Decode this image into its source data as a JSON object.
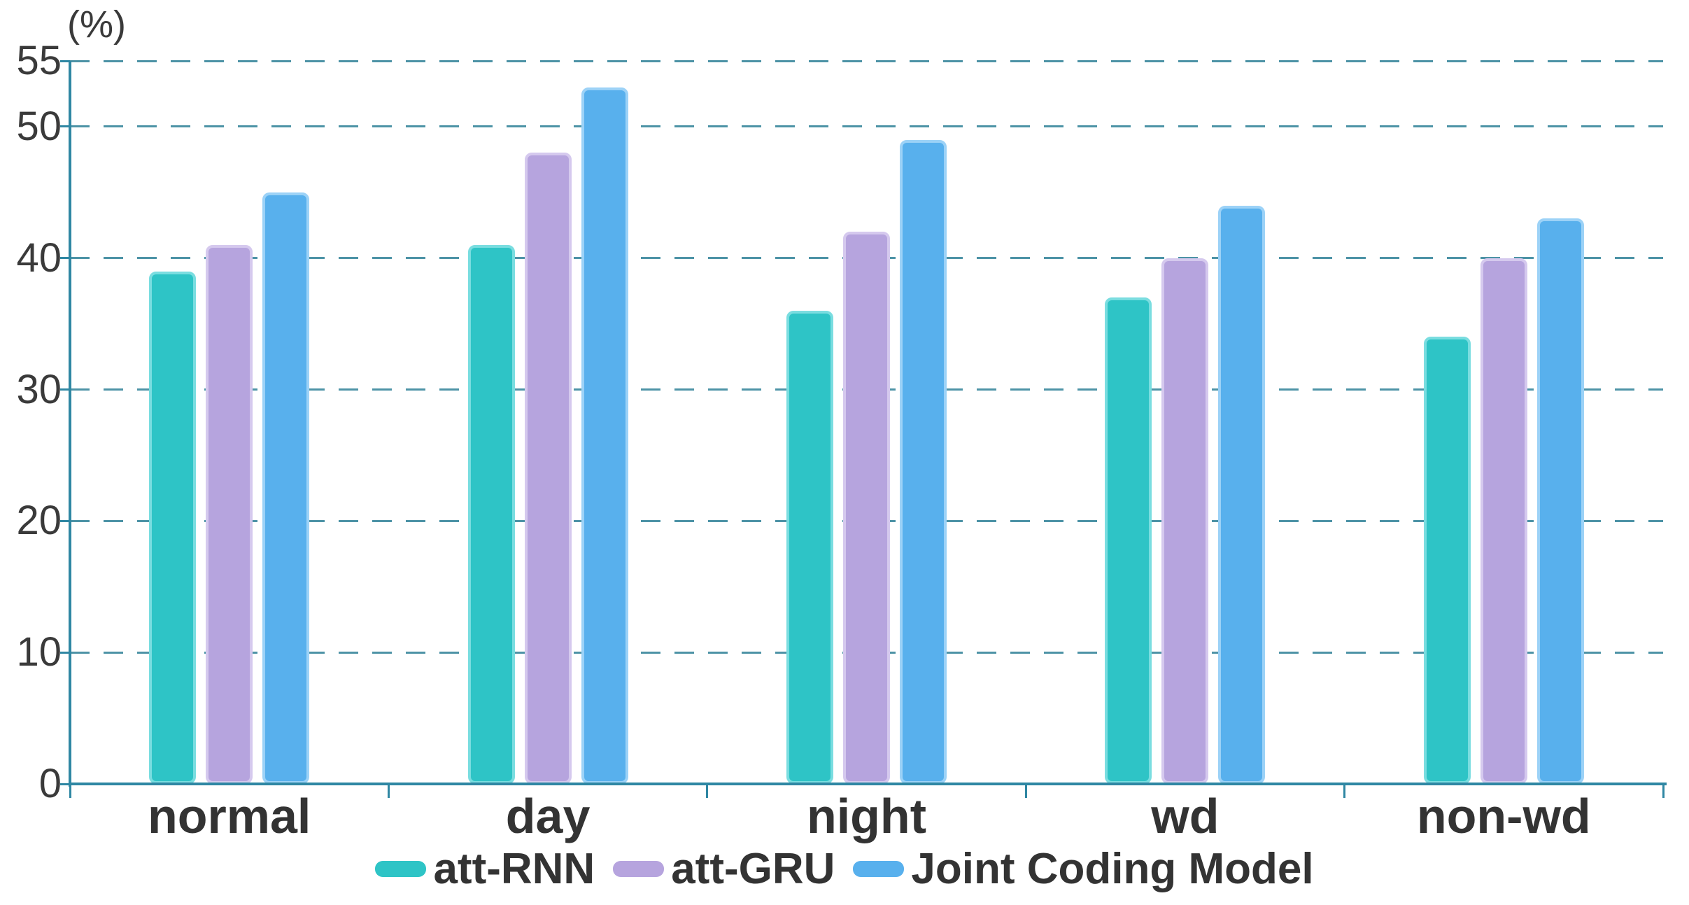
{
  "chart_data": {
    "type": "bar",
    "title": "",
    "unit_label": "(%)",
    "categories": [
      "normal",
      "day",
      "night",
      "wd",
      "non-wd"
    ],
    "series": [
      {
        "name": "att-RNN",
        "color": "#2EC4C6",
        "stroke": "#7ADDE0",
        "values": [
          39,
          41,
          36,
          37,
          34
        ]
      },
      {
        "name": "att-GRU",
        "color": "#B6A4DE",
        "stroke": "#D5C9EE",
        "values": [
          41,
          48,
          42,
          40,
          40
        ]
      },
      {
        "name": "Joint Coding Model",
        "color": "#58B0ED",
        "stroke": "#9CD2F7",
        "values": [
          45,
          53,
          49,
          44,
          43
        ]
      }
    ],
    "y_ticks": [
      0,
      10,
      20,
      30,
      40,
      50,
      55
    ],
    "ylim": [
      0,
      55
    ],
    "grid": "dashed horizontal gridlines at each y tick",
    "legend_position": "bottom-center"
  },
  "colors": {
    "axis": "#2F87A3",
    "grid": "#4D93A6",
    "text": "#3A3A3A",
    "background": "#FFFFFF"
  }
}
